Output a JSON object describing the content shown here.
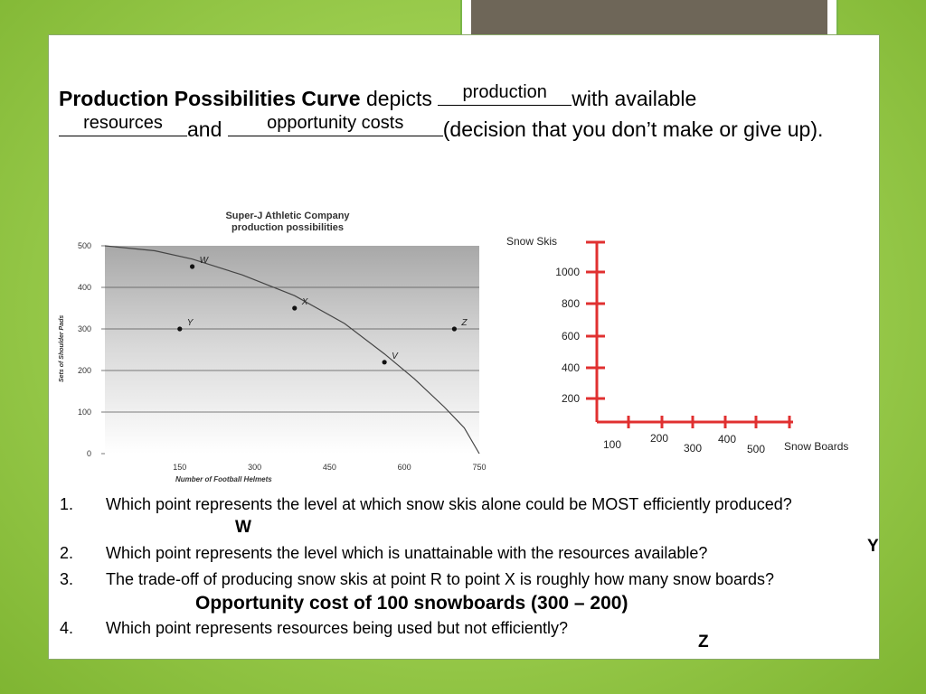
{
  "intro": {
    "title": "Production Possibilities Curve",
    "t1": " depicts ",
    "blank1": "production",
    "t2": "with available",
    "blank2": "resources",
    "t3": "and ",
    "blank3": "opportunity costs",
    "t4": "(decision that you don’t make or give up)."
  },
  "chart_data": [
    {
      "type": "line",
      "title": "Super-J Athletic Company production possibilities",
      "xlabel": "Number of Football Helmets",
      "ylabel": "Sets of Shoulder Pads",
      "x_ticks": [
        "150",
        "300",
        "450",
        "600",
        "750"
      ],
      "y_ticks": [
        "0",
        "100",
        "200",
        "300",
        "400",
        "500"
      ],
      "xlim": [
        0,
        750
      ],
      "ylim": [
        0,
        500
      ],
      "series": [
        {
          "x": [
            0,
            100,
            175,
            275,
            380,
            480,
            560,
            620,
            680,
            720,
            750
          ],
          "y": [
            500,
            488,
            468,
            430,
            380,
            313,
            240,
            180,
            112,
            62,
            0
          ]
        }
      ],
      "points": [
        {
          "label": "W",
          "x": 175,
          "y": 450
        },
        {
          "label": "X",
          "x": 380,
          "y": 350
        },
        {
          "label": "V",
          "x": 560,
          "y": 220
        },
        {
          "label": "Y",
          "x": 150,
          "y": 300
        },
        {
          "label": "Z",
          "x": 700,
          "y": 300
        }
      ],
      "grid": true
    },
    {
      "type": "line",
      "title": "",
      "xlabel": "Snow Boards",
      "ylabel": "Snow Skis",
      "y_ticks": [
        "200",
        "400",
        "600",
        "800",
        "1000"
      ],
      "x_ticks": [
        "100",
        "200",
        "300",
        "400",
        "500"
      ]
    }
  ],
  "questions": [
    {
      "num": "1.",
      "text": "Which point represents the level at which snow skis alone could be MOST efficiently produced?"
    },
    {
      "num": "2.",
      "text": "Which point represents the level which is unattainable with the resources available?"
    },
    {
      "num": "3.",
      "text": "The trade-off of producing snow skis at point R to point X is roughly how many snow boards?"
    },
    {
      "num": "4.",
      "text": "Which point represents resources being used but not efficiently?"
    }
  ],
  "answers": {
    "a1": "W",
    "a2": "Y",
    "a3": "Opportunity cost of 100 snowboards (300 – 200)",
    "a4": "Z"
  }
}
